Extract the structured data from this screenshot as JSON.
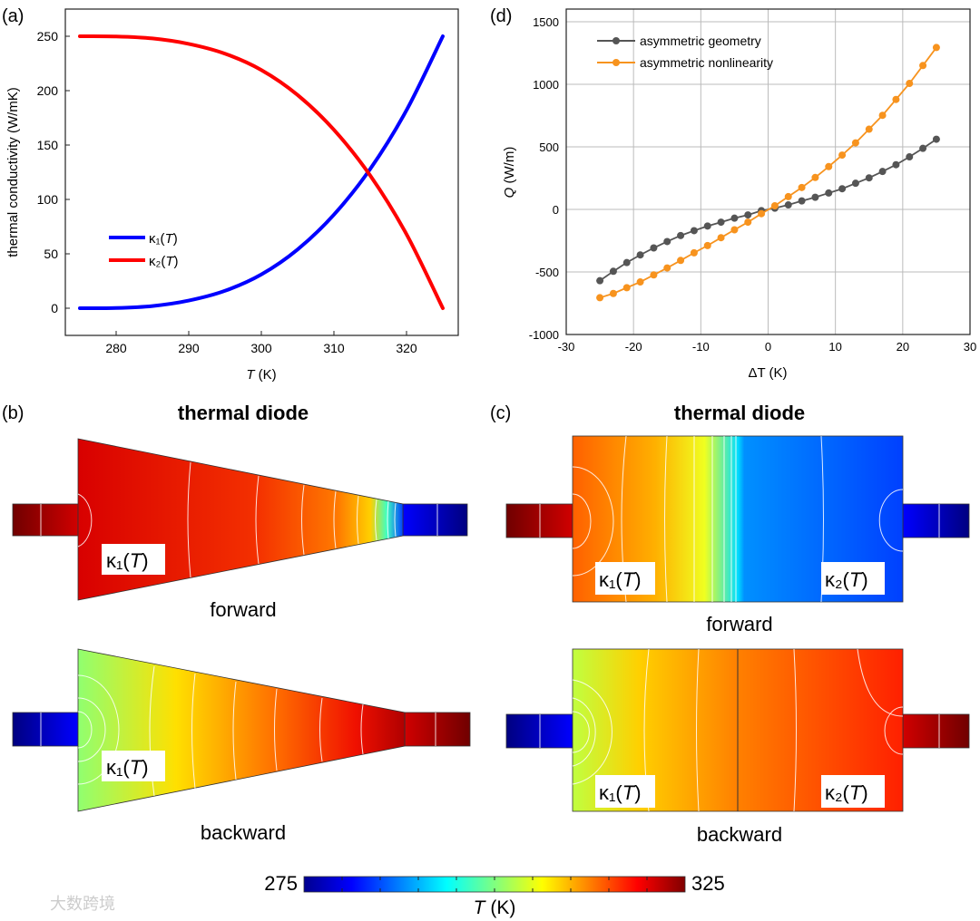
{
  "panels": {
    "a_label": "(a)",
    "b_label": "(b)",
    "c_label": "(c)",
    "d_label": "(d)"
  },
  "chart_data": [
    {
      "id": "a",
      "type": "line",
      "xlabel_italic": "T",
      "xlabel_unit": " (K)",
      "ylabel": "thermal conductivity (W/mK)",
      "xlim": [
        273,
        327
      ],
      "ylim": [
        -25,
        275
      ],
      "xticks": [
        280,
        290,
        300,
        310,
        320
      ],
      "yticks": [
        0,
        50,
        100,
        150,
        200,
        250
      ],
      "legend_position": "center-left",
      "series": [
        {
          "name": "κ₁(T)",
          "label_main": "κ₁(",
          "label_var": "T",
          "label_end": ")",
          "color": "#0000ff",
          "x": [
            275,
            280,
            285,
            290,
            295,
            300,
            305,
            310,
            315,
            320,
            325
          ],
          "y": [
            0,
            0.2,
            2,
            7,
            16,
            31,
            54,
            86,
            128,
            182,
            250
          ]
        },
        {
          "name": "κ₂(T)",
          "label_main": "κ₂(",
          "label_var": "T",
          "label_end": ")",
          "color": "#ff0000",
          "x": [
            275,
            280,
            285,
            290,
            295,
            300,
            305,
            310,
            315,
            320,
            325
          ],
          "y": [
            250,
            249.8,
            248,
            243,
            234,
            219,
            196,
            164,
            122,
            68,
            0
          ]
        }
      ]
    },
    {
      "id": "d",
      "type": "line",
      "xlabel": "ΔT (K)",
      "ylabel_italic": "Q",
      "ylabel_unit": " (W/m)",
      "xlim": [
        -30,
        30
      ],
      "ylim": [
        -1000,
        1500
      ],
      "xticks": [
        -30,
        -20,
        -10,
        0,
        10,
        20,
        30
      ],
      "yticks": [
        -1000,
        -500,
        0,
        500,
        1000,
        1500
      ],
      "grid": true,
      "legend_position": "top-left",
      "x": [
        -25,
        -23,
        -21,
        -19,
        -17,
        -15,
        -13,
        -11,
        -9,
        -7,
        -5,
        -3,
        -1,
        1,
        3,
        5,
        7,
        9,
        11,
        13,
        15,
        17,
        19,
        21,
        23,
        25
      ],
      "series": [
        {
          "name": "asymmetric geometry",
          "color": "#555555",
          "values": [
            -570,
            -495,
            -425,
            -364,
            -308,
            -257,
            -209,
            -170,
            -133,
            -102,
            -70,
            -44,
            -10,
            10,
            36,
            68,
            97,
            131,
            165,
            209,
            252,
            303,
            357,
            420,
            488,
            561
          ]
        },
        {
          "name": "asymmetric nonlinearity",
          "color": "#f7931e",
          "values": [
            -706,
            -672,
            -626,
            -580,
            -524,
            -468,
            -408,
            -347,
            -289,
            -226,
            -163,
            -102,
            -34,
            29,
            102,
            175,
            255,
            342,
            434,
            532,
            641,
            752,
            879,
            1007,
            1150,
            1294
          ]
        }
      ]
    }
  ],
  "diagrams": {
    "b_title": "thermal diode",
    "c_title": "thermal diode",
    "forward": "forward",
    "backward": "backward",
    "kappa1": {
      "main": "κ₁(",
      "var": "T",
      "end": ")"
    },
    "kappa2": {
      "main": "κ₂(",
      "var": "T",
      "end": ")"
    }
  },
  "colorbar": {
    "min": "275",
    "max": "325",
    "label_var": "T",
    "label_unit": " (K)"
  },
  "watermark": "大数跨境"
}
